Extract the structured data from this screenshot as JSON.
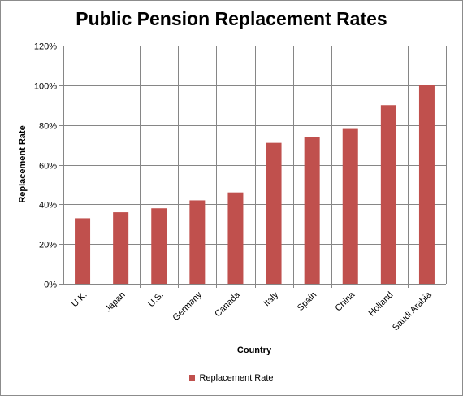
{
  "chart_data": {
    "type": "bar",
    "title": "Public Pension Replacement Rates",
    "xlabel": "Country",
    "ylabel": "Replacement Rate",
    "categories": [
      "U.K.",
      "Japan",
      "U.S.",
      "Germany",
      "Canada",
      "Italy",
      "Spain",
      "China",
      "Holland",
      "Saudi Arabia"
    ],
    "series": [
      {
        "name": "Replacement Rate",
        "values": [
          33,
          36,
          38,
          42,
          46,
          71,
          74,
          78,
          90,
          100
        ]
      }
    ],
    "ylim": [
      0,
      120
    ],
    "yticks": [
      0,
      20,
      40,
      60,
      80,
      100,
      120
    ],
    "ytick_labels": [
      "0%",
      "20%",
      "40%",
      "60%",
      "80%",
      "100%",
      "120%"
    ],
    "grid": "both",
    "legend": "bottom",
    "colors": {
      "bar": "#c0504d",
      "grid": "#868686"
    }
  }
}
